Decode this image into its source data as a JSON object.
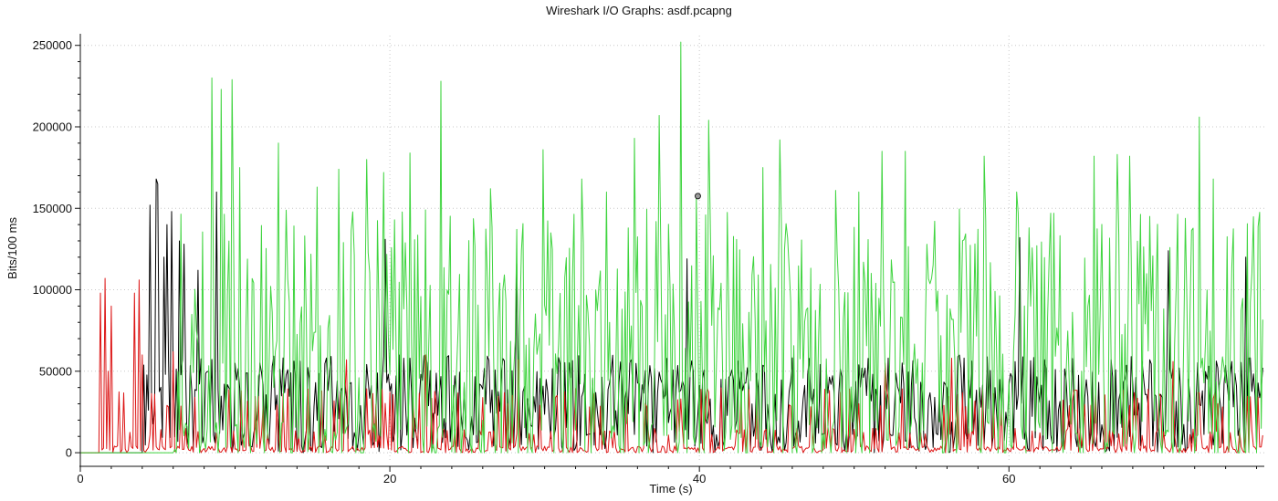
{
  "chart_data": {
    "type": "line",
    "title": "Wireshark I/O Graphs: asdf.pcapng",
    "xlabel": "Time (s)",
    "ylabel": "Bits/100 ms",
    "xlim": [
      0,
      76.5
    ],
    "ylim": [
      -5000,
      256000
    ],
    "x_ticks": [
      0,
      20,
      40,
      60
    ],
    "x_tick_labels": [
      "0",
      "20",
      "40",
      "60"
    ],
    "y_ticks": [
      0,
      50000,
      100000,
      150000,
      200000,
      250000
    ],
    "y_tick_labels": [
      "0",
      "50000",
      "100000",
      "150000",
      "200000",
      "250000"
    ],
    "grid": true,
    "sample_interval_s": 0.1,
    "series": [
      {
        "name": "black series",
        "color": "#000000",
        "start_s": 4.1,
        "end_s": 76.4,
        "seed": 7,
        "spikes": [
          [
            4.5,
            152000
          ],
          [
            4.9,
            168000
          ],
          [
            5.0,
            165000
          ],
          [
            5.4,
            120000
          ],
          [
            5.6,
            140000
          ],
          [
            5.9,
            148000
          ],
          [
            6.4,
            130000
          ],
          [
            6.7,
            128000
          ],
          [
            7.6,
            112000
          ],
          [
            8.8,
            160000
          ],
          [
            19.7,
            131000
          ],
          [
            28.2,
            116000
          ],
          [
            39.2,
            119000
          ],
          [
            60.7,
            132000
          ],
          [
            70.3,
            124000
          ],
          [
            75.3,
            120000
          ]
        ]
      },
      {
        "name": "red series",
        "color": "#dc1414",
        "start_s": 1.3,
        "end_s": 76.4,
        "seed": 11,
        "spikes": [
          [
            1.3,
            98000
          ],
          [
            1.55,
            107000
          ],
          [
            1.75,
            50000
          ],
          [
            2.0,
            90000
          ],
          [
            3.5,
            98000
          ],
          [
            3.75,
            106000
          ],
          [
            4.0,
            60000
          ],
          [
            6.0,
            62000
          ],
          [
            17.2,
            57000
          ],
          [
            22.3,
            60000
          ],
          [
            28.3,
            57000
          ],
          [
            52.0,
            55000
          ],
          [
            56.3,
            58000
          ],
          [
            70.6,
            56000
          ]
        ]
      },
      {
        "name": "green series",
        "color": "#3fd43f",
        "start_s": 0.0,
        "end_s": 76.4,
        "seed": 3,
        "spikes": [
          [
            8.5,
            230000
          ],
          [
            9.1,
            223000
          ],
          [
            9.8,
            229000
          ],
          [
            10.3,
            175000
          ],
          [
            12.8,
            190000
          ],
          [
            15.3,
            163000
          ],
          [
            16.7,
            174000
          ],
          [
            18.5,
            180000
          ],
          [
            19.6,
            172000
          ],
          [
            21.3,
            184000
          ],
          [
            23.3,
            228000
          ],
          [
            26.5,
            162000
          ],
          [
            29.9,
            186000
          ],
          [
            32.4,
            168000
          ],
          [
            34.0,
            160000
          ],
          [
            35.8,
            193000
          ],
          [
            37.4,
            207000
          ],
          [
            38.8,
            252000
          ],
          [
            39.8,
            158000
          ],
          [
            40.6,
            204000
          ],
          [
            44.1,
            175000
          ],
          [
            45.2,
            192000
          ],
          [
            48.8,
            161000
          ],
          [
            50.3,
            160000
          ],
          [
            51.8,
            185000
          ],
          [
            53.3,
            185000
          ],
          [
            58.4,
            182000
          ],
          [
            60.5,
            160000
          ],
          [
            62.7,
            147000
          ],
          [
            65.5,
            182000
          ],
          [
            67.0,
            183000
          ],
          [
            67.8,
            182000
          ],
          [
            72.3,
            206000
          ],
          [
            73.2,
            168000
          ]
        ]
      }
    ],
    "annotations": [
      {
        "type": "point_marker",
        "x": 39.9,
        "y": 157500,
        "series": "green series"
      }
    ]
  }
}
